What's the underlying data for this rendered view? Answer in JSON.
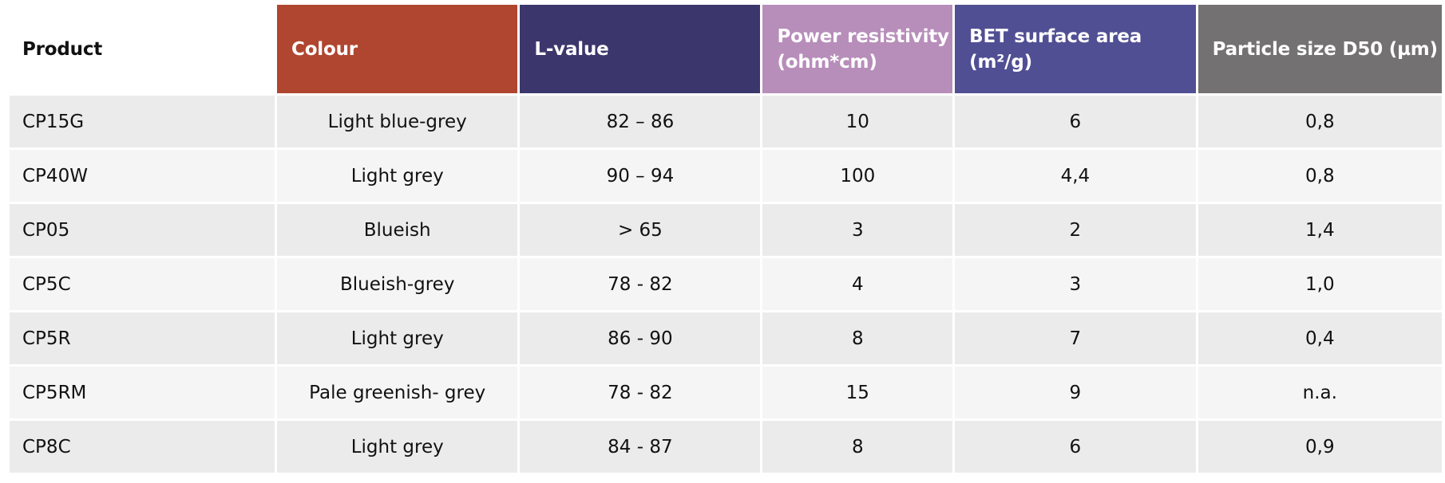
{
  "table": {
    "headers": [
      {
        "label": "Product",
        "color": "#ffffff"
      },
      {
        "label": "Colour",
        "color": "#b04630"
      },
      {
        "label": "L-value",
        "color": "#3b376d"
      },
      {
        "label": "Power resistivity (ohm*cm)",
        "color": "#b78dba"
      },
      {
        "label": "BET surface area (m²/g)",
        "color": "#514f93"
      },
      {
        "label": "Particle size D50 (µm)",
        "color": "#737172"
      }
    ],
    "rows": [
      {
        "product": "CP15G",
        "colour": "Light blue-grey",
        "l_value": "82 – 86",
        "resistivity": "10",
        "bet": "6",
        "particle": "0,8"
      },
      {
        "product": "CP40W",
        "colour": "Light grey",
        "l_value": "90 – 94",
        "resistivity": "100",
        "bet": "4,4",
        "particle": "0,8"
      },
      {
        "product": "CP05",
        "colour": "Blueish",
        "l_value": "> 65",
        "resistivity": "3",
        "bet": "2",
        "particle": "1,4"
      },
      {
        "product": "CP5C",
        "colour": "Blueish-grey",
        "l_value": "78 - 82",
        "resistivity": "4",
        "bet": "3",
        "particle": "1,0"
      },
      {
        "product": "CP5R",
        "colour": "Light grey",
        "l_value": "86 - 90",
        "resistivity": "8",
        "bet": "7",
        "particle": "0,4"
      },
      {
        "product": "CP5RM",
        "colour": "Pale greenish- grey",
        "l_value": "78 - 82",
        "resistivity": "15",
        "bet": "9",
        "particle": "n.a."
      },
      {
        "product": "CP8C",
        "colour": "Light grey",
        "l_value": "84 - 87",
        "resistivity": "8",
        "bet": "6",
        "particle": "0,9"
      }
    ]
  }
}
